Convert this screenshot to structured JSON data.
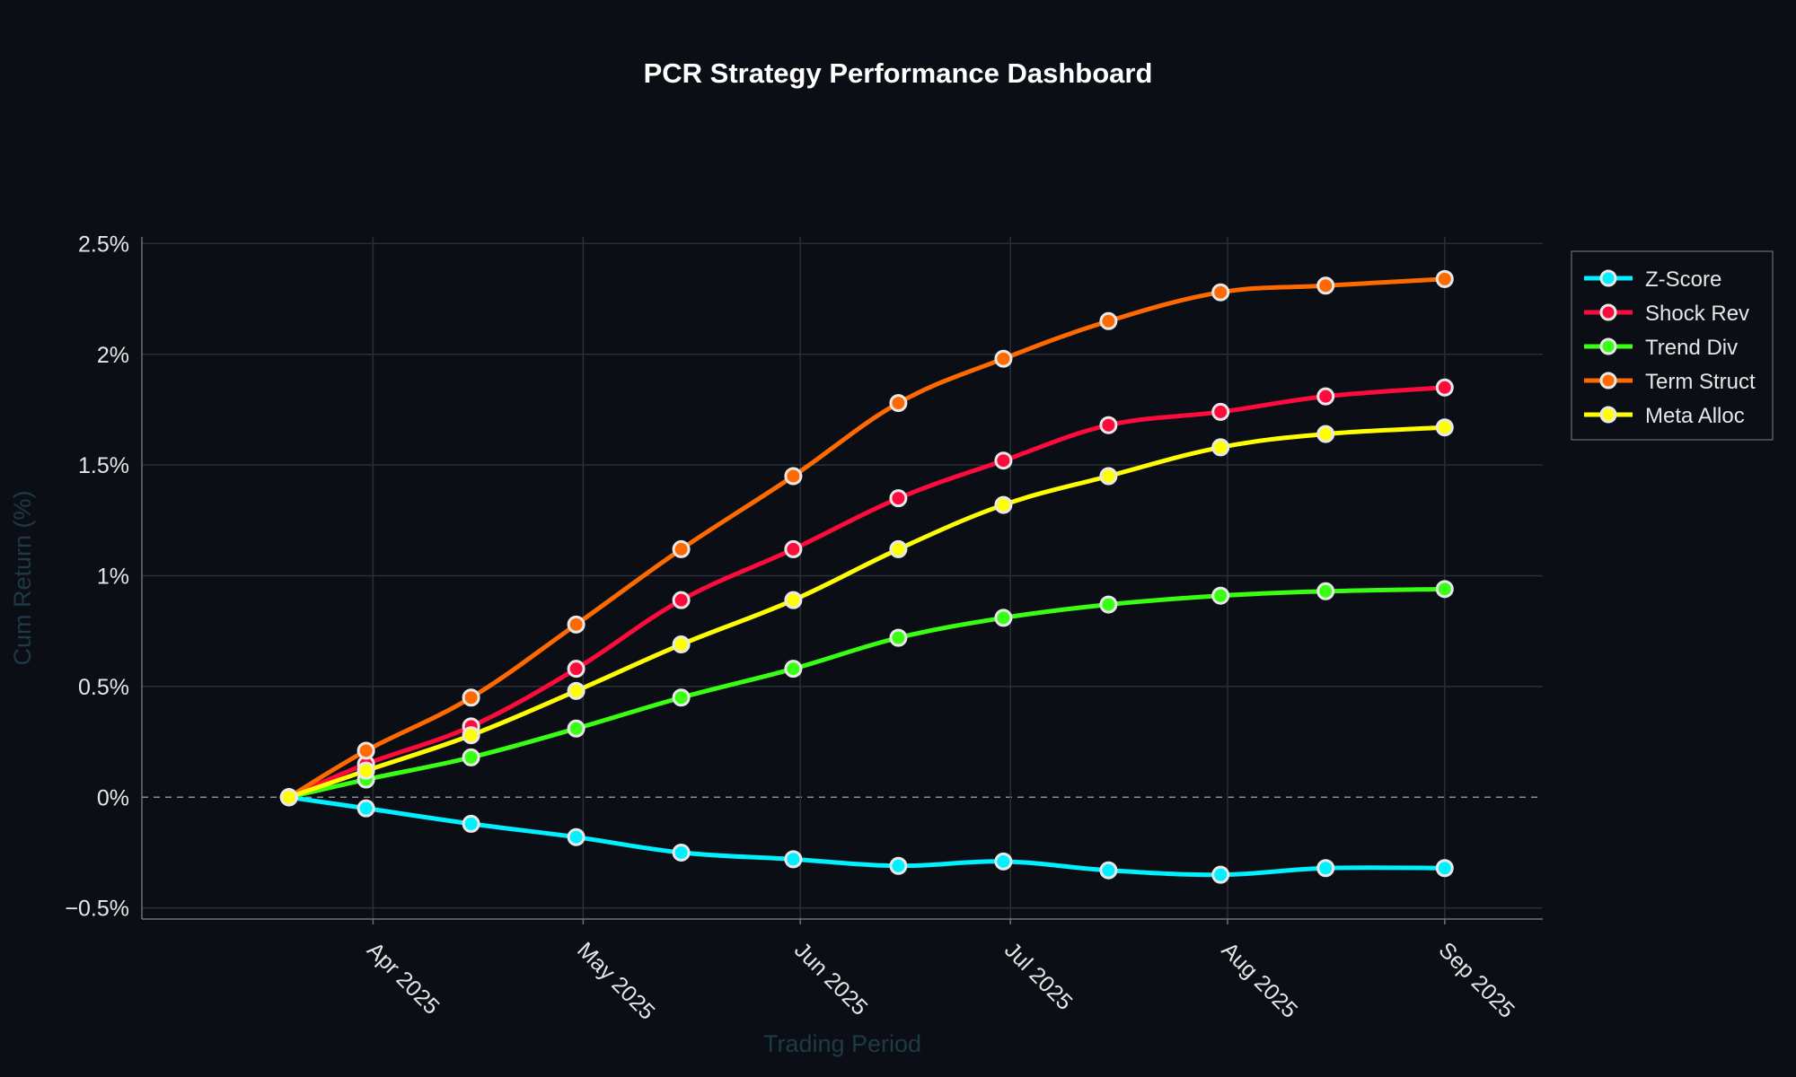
{
  "chart_data": {
    "type": "line",
    "title": "PCR Strategy Performance Dashboard",
    "xlabel": "Trading Period",
    "ylabel": "Cum Return (%)",
    "x": [
      "2025-03-20",
      "2025-03-31",
      "2025-04-15",
      "2025-04-30",
      "2025-05-15",
      "2025-05-31",
      "2025-06-15",
      "2025-06-30",
      "2025-07-15",
      "2025-07-31",
      "2025-08-15",
      "2025-09-01"
    ],
    "x_ticks": [
      {
        "date": "2025-04-01",
        "label": "Apr 2025"
      },
      {
        "date": "2025-05-01",
        "label": "May 2025"
      },
      {
        "date": "2025-06-01",
        "label": "Jun 2025"
      },
      {
        "date": "2025-07-01",
        "label": "Jul 2025"
      },
      {
        "date": "2025-08-01",
        "label": "Aug 2025"
      },
      {
        "date": "2025-09-01",
        "label": "Sep 2025"
      }
    ],
    "x_range": [
      "2025-02-27",
      "2025-09-15"
    ],
    "y_ticks": [
      {
        "value": -0.5,
        "label": "−0.5%"
      },
      {
        "value": 0,
        "label": "0%"
      },
      {
        "value": 0.5,
        "label": "0.5%"
      },
      {
        "value": 1,
        "label": "1%"
      },
      {
        "value": 1.5,
        "label": "1.5%"
      },
      {
        "value": 2,
        "label": "2%"
      },
      {
        "value": 2.5,
        "label": "2.5%"
      }
    ],
    "ylim": [
      -0.55,
      2.53
    ],
    "grid": true,
    "legend_position": "top-right",
    "series": [
      {
        "name": "Z-Score",
        "color": "#00f0ff",
        "values": [
          0,
          -0.05,
          -0.12,
          -0.18,
          -0.25,
          -0.28,
          -0.31,
          -0.29,
          -0.33,
          -0.35,
          -0.32,
          -0.32
        ]
      },
      {
        "name": "Shock Rev",
        "color": "#ff0a3c",
        "values": [
          0,
          0.15,
          0.32,
          0.58,
          0.89,
          1.12,
          1.35,
          1.52,
          1.68,
          1.74,
          1.81,
          1.85
        ]
      },
      {
        "name": "Trend Div",
        "color": "#39ff14",
        "values": [
          0,
          0.08,
          0.18,
          0.31,
          0.45,
          0.58,
          0.72,
          0.81,
          0.87,
          0.91,
          0.93,
          0.94
        ]
      },
      {
        "name": "Term Struct",
        "color": "#ff6a00",
        "values": [
          0,
          0.21,
          0.45,
          0.78,
          1.12,
          1.45,
          1.78,
          1.98,
          2.15,
          2.28,
          2.31,
          2.34
        ]
      },
      {
        "name": "Meta Alloc",
        "color": "#ffff00",
        "values": [
          0,
          0.12,
          0.28,
          0.48,
          0.69,
          0.89,
          1.12,
          1.32,
          1.45,
          1.58,
          1.64,
          1.67
        ]
      }
    ]
  },
  "colors": {
    "background": "#0b0e14",
    "grid": "#2a2f37",
    "marker_edge": "#e8e8e8"
  }
}
